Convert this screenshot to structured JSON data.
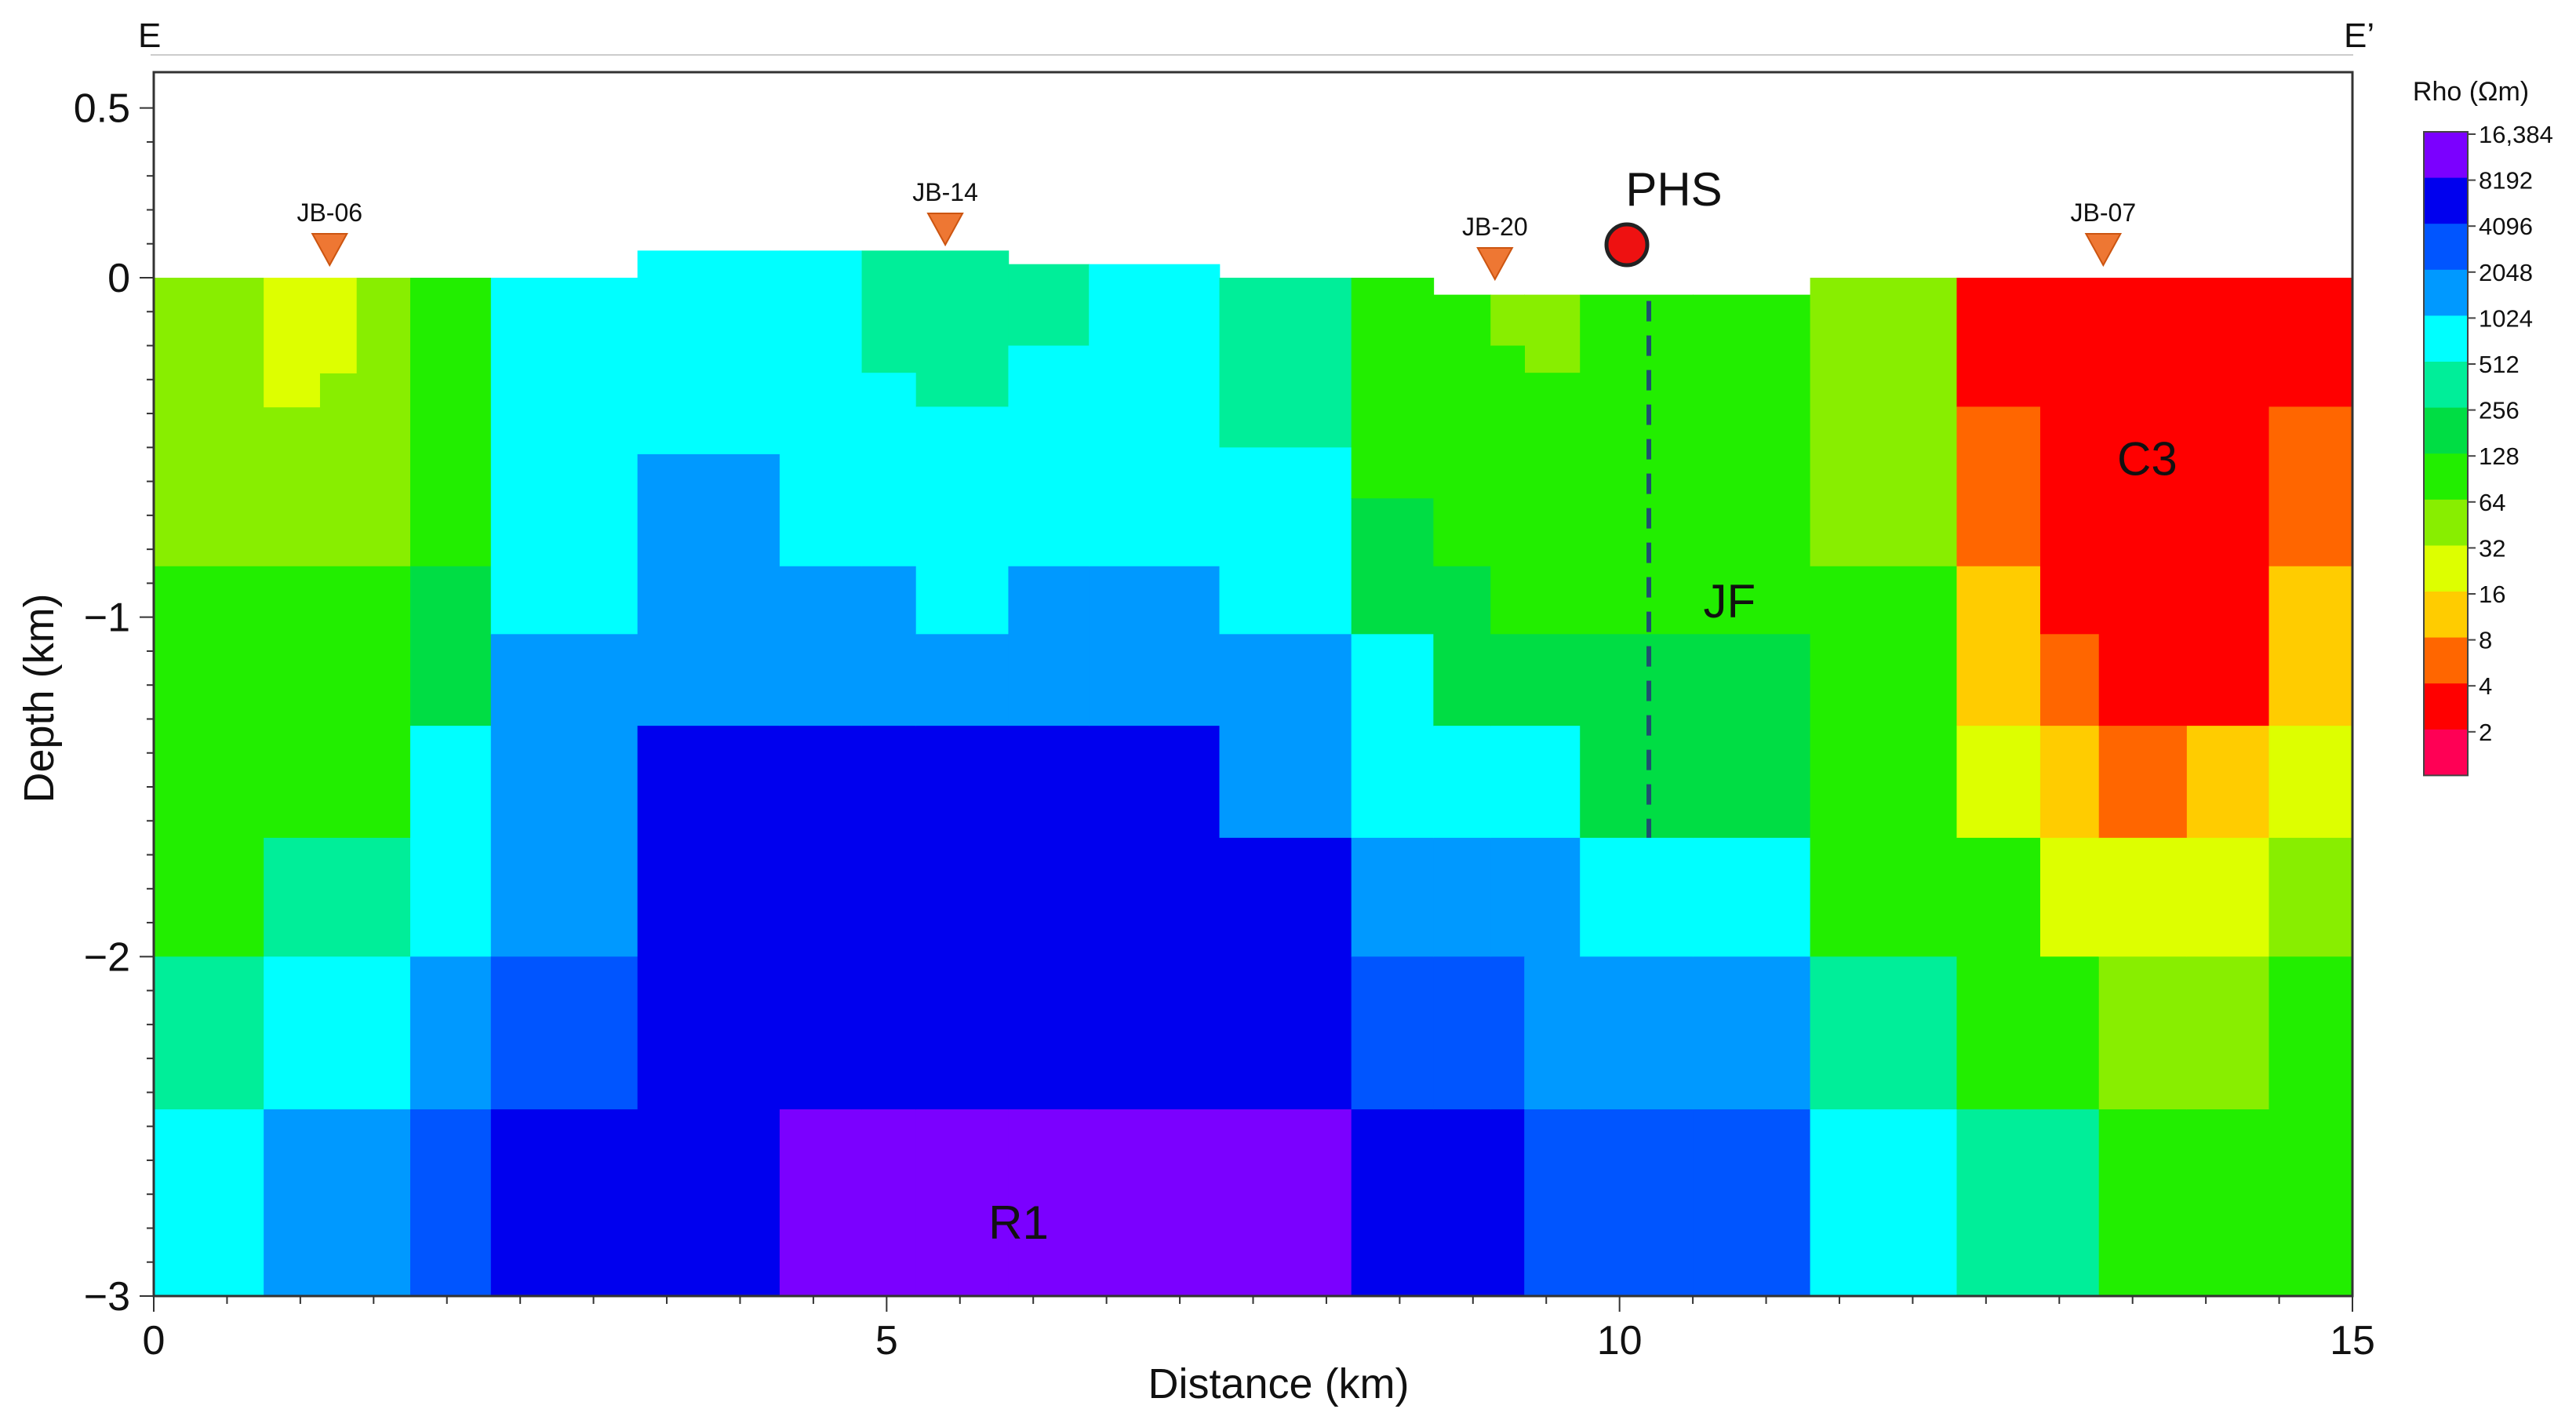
{
  "chart_data": {
    "type": "heatmap",
    "profile": {
      "start_label": "E",
      "end_label": "E’"
    },
    "xlabel": "Distance (km)",
    "ylabel": "Depth (km)",
    "xlim": [
      0,
      15
    ],
    "ylim": [
      -3,
      0.6
    ],
    "xticks": [
      0,
      5,
      10,
      15
    ],
    "xtick_labels": [
      "0",
      "5",
      "10",
      "15"
    ],
    "yticks": [
      0.5,
      0,
      -1,
      -2,
      -3
    ],
    "ytick_labels": [
      "0.5",
      "0",
      "−1",
      "−2",
      "−3"
    ],
    "colorbar": {
      "title": "Rho (Ωm)",
      "levels": [
        {
          "label": "16,384",
          "value": 16384,
          "color": "#7b00ff"
        },
        {
          "label": "8192",
          "value": 8192,
          "color": "#0000ee"
        },
        {
          "label": "4096",
          "value": 4096,
          "color": "#0055ff"
        },
        {
          "label": "2048",
          "value": 2048,
          "color": "#0099ff"
        },
        {
          "label": "1024",
          "value": 1024,
          "color": "#00ffff"
        },
        {
          "label": "512",
          "value": 512,
          "color": "#00ee99"
        },
        {
          "label": "256",
          "value": 256,
          "color": "#00dd44"
        },
        {
          "label": "128",
          "value": 128,
          "color": "#22ee00"
        },
        {
          "label": "64",
          "value": 64,
          "color": "#88ee00"
        },
        {
          "label": "32",
          "value": 32,
          "color": "#ddff00"
        },
        {
          "label": "16",
          "value": 16,
          "color": "#ffcc00"
        },
        {
          "label": "8",
          "value": 8,
          "color": "#ff6600"
        },
        {
          "label": "4",
          "value": 4,
          "color": "#ff0000"
        },
        {
          "label": "2",
          "value": 2,
          "color": "#ff0055"
        }
      ]
    },
    "cells": [
      {
        "x0": 0,
        "x1": 0.75,
        "y0": 0,
        "y1": -0.85,
        "rho": 64
      },
      {
        "x0": 0,
        "x1": 0.75,
        "y0": -0.85,
        "y1": -2.0,
        "rho": 128
      },
      {
        "x0": 0,
        "x1": 0.75,
        "y0": -2.0,
        "y1": -2.45,
        "rho": 512
      },
      {
        "x0": 0,
        "x1": 0.75,
        "y0": -2.45,
        "y1": -3.0,
        "rho": 1024
      },
      {
        "x0": 0.75,
        "x1": 1.75,
        "y0": 0,
        "y1": -0.85,
        "rho": 64
      },
      {
        "x0": 0.75,
        "x1": 1.13,
        "y0": 0,
        "y1": -0.38,
        "rho": 32
      },
      {
        "x0": 1.13,
        "x1": 1.38,
        "y0": 0,
        "y1": -0.28,
        "rho": 32
      },
      {
        "x0": 0.75,
        "x1": 1.75,
        "y0": -0.85,
        "y1": -1.65,
        "rho": 128
      },
      {
        "x0": 0.75,
        "x1": 1.75,
        "y0": -1.65,
        "y1": -2.0,
        "rho": 512
      },
      {
        "x0": 0.75,
        "x1": 1.75,
        "y0": -2.0,
        "y1": -2.45,
        "rho": 1024
      },
      {
        "x0": 0.75,
        "x1": 1.75,
        "y0": -2.45,
        "y1": -3.0,
        "rho": 2048
      },
      {
        "x0": 1.75,
        "x1": 2.3,
        "y0": 0,
        "y1": -0.85,
        "rho": 128
      },
      {
        "x0": 1.75,
        "x1": 2.3,
        "y0": -0.85,
        "y1": -1.32,
        "rho": 256
      },
      {
        "x0": 1.75,
        "x1": 2.3,
        "y0": -1.32,
        "y1": -2.0,
        "rho": 1024
      },
      {
        "x0": 1.75,
        "x1": 2.3,
        "y0": -2.0,
        "y1": -2.45,
        "rho": 2048
      },
      {
        "x0": 1.75,
        "x1": 2.3,
        "y0": -2.45,
        "y1": -3.0,
        "rho": 4096
      },
      {
        "x0": 2.3,
        "x1": 3.3,
        "y0": 0,
        "y1": -1.05,
        "rho": 1024
      },
      {
        "x0": 2.3,
        "x1": 3.3,
        "y0": -1.05,
        "y1": -2.0,
        "rho": 2048
      },
      {
        "x0": 2.3,
        "x1": 3.3,
        "y0": -2.0,
        "y1": -2.45,
        "rho": 4096
      },
      {
        "x0": 2.3,
        "x1": 3.3,
        "y0": -2.45,
        "y1": -3.0,
        "rho": 8192
      },
      {
        "x0": 3.3,
        "x1": 4.27,
        "y0": 0.08,
        "y1": -0.52,
        "rho": 1024
      },
      {
        "x0": 3.3,
        "x1": 4.27,
        "y0": -0.52,
        "y1": -1.32,
        "rho": 2048
      },
      {
        "x0": 3.3,
        "x1": 4.27,
        "y0": -1.32,
        "y1": -2.45,
        "rho": 8192
      },
      {
        "x0": 3.3,
        "x1": 4.27,
        "y0": -2.45,
        "y1": -3.0,
        "rho": 8192
      },
      {
        "x0": 4.27,
        "x1": 4.83,
        "y0": 0.08,
        "y1": -0.85,
        "rho": 1024
      },
      {
        "x0": 4.27,
        "x1": 4.83,
        "y0": -0.85,
        "y1": -1.32,
        "rho": 2048
      },
      {
        "x0": 4.27,
        "x1": 4.83,
        "y0": -1.32,
        "y1": -2.45,
        "rho": 8192
      },
      {
        "x0": 4.27,
        "x1": 4.83,
        "y0": -2.45,
        "y1": -3.0,
        "rho": 16384
      },
      {
        "x0": 4.83,
        "x1": 5.2,
        "y0": 0.08,
        "y1": -0.28,
        "rho": 512
      },
      {
        "x0": 4.83,
        "x1": 5.2,
        "y0": -0.28,
        "y1": -0.85,
        "rho": 1024
      },
      {
        "x0": 4.83,
        "x1": 5.2,
        "y0": -0.85,
        "y1": -1.32,
        "rho": 2048
      },
      {
        "x0": 4.83,
        "x1": 5.2,
        "y0": -1.32,
        "y1": -2.45,
        "rho": 8192
      },
      {
        "x0": 4.83,
        "x1": 5.2,
        "y0": -2.45,
        "y1": -3.0,
        "rho": 16384
      },
      {
        "x0": 5.2,
        "x1": 5.83,
        "y0": 0.08,
        "y1": -0.38,
        "rho": 512
      },
      {
        "x0": 5.2,
        "x1": 5.83,
        "y0": -0.38,
        "y1": -1.05,
        "rho": 1024
      },
      {
        "x0": 5.2,
        "x1": 5.83,
        "y0": -1.05,
        "y1": -1.32,
        "rho": 2048
      },
      {
        "x0": 5.2,
        "x1": 5.83,
        "y0": -1.32,
        "y1": -2.45,
        "rho": 8192
      },
      {
        "x0": 5.2,
        "x1": 5.83,
        "y0": -2.45,
        "y1": -3.0,
        "rho": 16384
      },
      {
        "x0": 5.83,
        "x1": 6.38,
        "y0": 0.04,
        "y1": -0.2,
        "rho": 512
      },
      {
        "x0": 5.83,
        "x1": 6.38,
        "y0": -0.2,
        "y1": -0.85,
        "rho": 1024
      },
      {
        "x0": 5.83,
        "x1": 6.38,
        "y0": -0.85,
        "y1": -1.32,
        "rho": 2048
      },
      {
        "x0": 5.83,
        "x1": 6.38,
        "y0": -1.32,
        "y1": -2.45,
        "rho": 8192
      },
      {
        "x0": 5.83,
        "x1": 6.38,
        "y0": -2.45,
        "y1": -3.0,
        "rho": 16384
      },
      {
        "x0": 6.38,
        "x1": 7.27,
        "y0": 0.04,
        "y1": -0.85,
        "rho": 1024
      },
      {
        "x0": 6.38,
        "x1": 7.27,
        "y0": -0.85,
        "y1": -1.32,
        "rho": 2048
      },
      {
        "x0": 6.38,
        "x1": 7.27,
        "y0": -1.32,
        "y1": -2.45,
        "rho": 8192
      },
      {
        "x0": 6.38,
        "x1": 7.27,
        "y0": -2.45,
        "y1": -3.0,
        "rho": 16384
      },
      {
        "x0": 7.27,
        "x1": 8.17,
        "y0": 0,
        "y1": -0.5,
        "rho": 512
      },
      {
        "x0": 7.27,
        "x1": 8.17,
        "y0": -0.5,
        "y1": -1.05,
        "rho": 1024
      },
      {
        "x0": 7.27,
        "x1": 8.17,
        "y0": -1.05,
        "y1": -1.65,
        "rho": 2048
      },
      {
        "x0": 7.27,
        "x1": 8.17,
        "y0": -1.65,
        "y1": -2.45,
        "rho": 8192
      },
      {
        "x0": 7.27,
        "x1": 8.17,
        "y0": -2.45,
        "y1": -3.0,
        "rho": 16384
      },
      {
        "x0": 8.17,
        "x1": 8.73,
        "y0": 0,
        "y1": -0.65,
        "rho": 128
      },
      {
        "x0": 8.17,
        "x1": 8.73,
        "y0": -0.65,
        "y1": -1.05,
        "rho": 256
      },
      {
        "x0": 8.17,
        "x1": 8.73,
        "y0": -1.05,
        "y1": -1.65,
        "rho": 1024
      },
      {
        "x0": 8.17,
        "x1": 8.73,
        "y0": -1.65,
        "y1": -2.0,
        "rho": 2048
      },
      {
        "x0": 8.17,
        "x1": 8.73,
        "y0": -2.0,
        "y1": -2.45,
        "rho": 4096
      },
      {
        "x0": 8.17,
        "x1": 8.73,
        "y0": -2.45,
        "y1": -3.0,
        "rho": 8192
      },
      {
        "x0": 8.73,
        "x1": 9.12,
        "y0": -0.05,
        "y1": -0.65,
        "rho": 128
      },
      {
        "x0": 8.73,
        "x1": 9.12,
        "y0": -0.65,
        "y1": -0.85,
        "rho": 128
      },
      {
        "x0": 8.73,
        "x1": 9.12,
        "y0": -0.85,
        "y1": -1.32,
        "rho": 256
      },
      {
        "x0": 8.73,
        "x1": 9.12,
        "y0": -1.32,
        "y1": -1.65,
        "rho": 1024
      },
      {
        "x0": 8.73,
        "x1": 9.12,
        "y0": -1.65,
        "y1": -2.0,
        "rho": 2048
      },
      {
        "x0": 8.73,
        "x1": 9.12,
        "y0": -2.0,
        "y1": -2.45,
        "rho": 4096
      },
      {
        "x0": 8.73,
        "x1": 9.12,
        "y0": -2.45,
        "y1": -3.0,
        "rho": 8192
      },
      {
        "x0": 9.12,
        "x1": 9.35,
        "y0": -0.05,
        "y1": -0.2,
        "rho": 64
      },
      {
        "x0": 9.35,
        "x1": 9.73,
        "y0": -0.05,
        "y1": -0.28,
        "rho": 64
      },
      {
        "x0": 9.12,
        "x1": 9.35,
        "y0": -0.2,
        "y1": -0.65,
        "rho": 128
      },
      {
        "x0": 9.35,
        "x1": 9.73,
        "y0": -0.28,
        "y1": -0.65,
        "rho": 128
      },
      {
        "x0": 9.12,
        "x1": 9.73,
        "y0": -0.65,
        "y1": -1.05,
        "rho": 128
      },
      {
        "x0": 9.12,
        "x1": 9.73,
        "y0": -1.05,
        "y1": -1.32,
        "rho": 256
      },
      {
        "x0": 9.12,
        "x1": 9.73,
        "y0": -1.32,
        "y1": -1.65,
        "rho": 1024
      },
      {
        "x0": 9.12,
        "x1": 9.73,
        "y0": -1.65,
        "y1": -2.0,
        "rho": 2048
      },
      {
        "x0": 9.12,
        "x1": 9.35,
        "y0": -2.0,
        "y1": -2.45,
        "rho": 4096
      },
      {
        "x0": 9.35,
        "x1": 9.73,
        "y0": -2.0,
        "y1": -2.45,
        "rho": 2048
      },
      {
        "x0": 9.12,
        "x1": 9.35,
        "y0": -2.45,
        "y1": -3.0,
        "rho": 8192
      },
      {
        "x0": 9.35,
        "x1": 9.73,
        "y0": -2.45,
        "y1": -3.0,
        "rho": 4096
      },
      {
        "x0": 9.73,
        "x1": 10.5,
        "y0": -0.05,
        "y1": -1.05,
        "rho": 128
      },
      {
        "x0": 9.73,
        "x1": 10.5,
        "y0": -1.05,
        "y1": -1.65,
        "rho": 256
      },
      {
        "x0": 9.73,
        "x1": 10.5,
        "y0": -1.65,
        "y1": -2.0,
        "rho": 1024
      },
      {
        "x0": 9.73,
        "x1": 10.5,
        "y0": -2.0,
        "y1": -2.45,
        "rho": 2048
      },
      {
        "x0": 9.73,
        "x1": 10.5,
        "y0": -2.45,
        "y1": -3.0,
        "rho": 4096
      },
      {
        "x0": 10.5,
        "x1": 11.3,
        "y0": -0.05,
        "y1": -0.38,
        "rho": 128
      },
      {
        "x0": 10.5,
        "x1": 11.3,
        "y0": -0.38,
        "y1": -1.05,
        "rho": 128
      },
      {
        "x0": 10.5,
        "x1": 11.3,
        "y0": -1.05,
        "y1": -1.65,
        "rho": 256
      },
      {
        "x0": 10.5,
        "x1": 11.3,
        "y0": -1.65,
        "y1": -2.0,
        "rho": 1024
      },
      {
        "x0": 10.5,
        "x1": 11.3,
        "y0": -2.0,
        "y1": -2.45,
        "rho": 2048
      },
      {
        "x0": 10.5,
        "x1": 11.3,
        "y0": -2.45,
        "y1": -3.0,
        "rho": 4096
      },
      {
        "x0": 11.3,
        "x1": 12.3,
        "y0": 0,
        "y1": -0.85,
        "rho": 64
      },
      {
        "x0": 11.3,
        "x1": 12.3,
        "y0": -0.85,
        "y1": -2.0,
        "rho": 128
      },
      {
        "x0": 11.3,
        "x1": 12.3,
        "y0": -2.0,
        "y1": -2.45,
        "rho": 512
      },
      {
        "x0": 11.3,
        "x1": 12.3,
        "y0": -2.45,
        "y1": -3.0,
        "rho": 1024
      },
      {
        "x0": 12.3,
        "x1": 12.87,
        "y0": 0,
        "y1": -0.38,
        "rho": 4
      },
      {
        "x0": 12.3,
        "x1": 12.87,
        "y0": -0.38,
        "y1": -0.85,
        "rho": 8
      },
      {
        "x0": 12.3,
        "x1": 12.87,
        "y0": -0.85,
        "y1": -1.32,
        "rho": 16
      },
      {
        "x0": 12.3,
        "x1": 12.87,
        "y0": -1.32,
        "y1": -1.65,
        "rho": 32
      },
      {
        "x0": 12.3,
        "x1": 12.87,
        "y0": -1.65,
        "y1": -2.0,
        "rho": 128
      },
      {
        "x0": 12.3,
        "x1": 12.87,
        "y0": -2.0,
        "y1": -2.45,
        "rho": 128
      },
      {
        "x0": 12.3,
        "x1": 12.87,
        "y0": -2.45,
        "y1": -3.0,
        "rho": 512
      },
      {
        "x0": 12.87,
        "x1": 13.27,
        "y0": 0,
        "y1": -1.05,
        "rho": 4
      },
      {
        "x0": 12.87,
        "x1": 13.27,
        "y0": -1.05,
        "y1": -1.32,
        "rho": 8
      },
      {
        "x0": 12.87,
        "x1": 13.27,
        "y0": -1.32,
        "y1": -1.65,
        "rho": 16
      },
      {
        "x0": 12.87,
        "x1": 13.27,
        "y0": -1.65,
        "y1": -2.0,
        "rho": 32
      },
      {
        "x0": 12.87,
        "x1": 13.27,
        "y0": -2.0,
        "y1": -2.45,
        "rho": 128
      },
      {
        "x0": 12.87,
        "x1": 13.27,
        "y0": -2.45,
        "y1": -3.0,
        "rho": 512
      },
      {
        "x0": 13.27,
        "x1": 13.87,
        "y0": 0,
        "y1": -1.32,
        "rho": 4
      },
      {
        "x0": 13.27,
        "x1": 13.87,
        "y0": -1.32,
        "y1": -1.65,
        "rho": 8
      },
      {
        "x0": 13.27,
        "x1": 13.87,
        "y0": -1.65,
        "y1": -2.0,
        "rho": 32
      },
      {
        "x0": 13.27,
        "x1": 13.87,
        "y0": -2.0,
        "y1": -2.45,
        "rho": 64
      },
      {
        "x0": 13.27,
        "x1": 13.87,
        "y0": -2.45,
        "y1": -3.0,
        "rho": 128
      },
      {
        "x0": 13.87,
        "x1": 14.43,
        "y0": 0,
        "y1": -1.32,
        "rho": 4
      },
      {
        "x0": 13.87,
        "x1": 14.43,
        "y0": -1.32,
        "y1": -1.65,
        "rho": 16
      },
      {
        "x0": 13.87,
        "x1": 14.43,
        "y0": -1.65,
        "y1": -2.0,
        "rho": 32
      },
      {
        "x0": 13.87,
        "x1": 14.43,
        "y0": -2.0,
        "y1": -2.45,
        "rho": 64
      },
      {
        "x0": 13.87,
        "x1": 14.43,
        "y0": -2.45,
        "y1": -3.0,
        "rho": 128
      },
      {
        "x0": 14.43,
        "x1": 15,
        "y0": 0,
        "y1": -0.38,
        "rho": 4
      },
      {
        "x0": 14.43,
        "x1": 15,
        "y0": -0.38,
        "y1": -0.85,
        "rho": 8
      },
      {
        "x0": 14.43,
        "x1": 15,
        "y0": -0.85,
        "y1": -1.32,
        "rho": 16
      },
      {
        "x0": 14.43,
        "x1": 15,
        "y0": -1.32,
        "y1": -1.65,
        "rho": 32
      },
      {
        "x0": 14.43,
        "x1": 15,
        "y0": -1.65,
        "y1": -2.0,
        "rho": 64
      },
      {
        "x0": 14.43,
        "x1": 15,
        "y0": -2.0,
        "y1": -2.45,
        "rho": 128
      },
      {
        "x0": 14.43,
        "x1": 15,
        "y0": -2.45,
        "y1": -3.0,
        "rho": 128
      }
    ],
    "stations": [
      {
        "label": "JB-06",
        "x": 1.2
      },
      {
        "label": "JB-14",
        "x": 5.4
      },
      {
        "label": "JB-20",
        "x": 9.15
      },
      {
        "label": "JB-07",
        "x": 13.3
      }
    ],
    "marker": {
      "label": "PHS",
      "x": 10.05,
      "y": 0.1,
      "color": "#ee1111"
    },
    "fault": {
      "label": "JF",
      "x": 10.2,
      "y_top": -0.05,
      "y_bottom": -1.65
    },
    "annotations": [
      {
        "text": "JF",
        "x": 10.75,
        "y": -0.95
      },
      {
        "text": "C3",
        "x": 13.6,
        "y": -0.53
      },
      {
        "text": "R1",
        "x": 5.9,
        "y": -2.78
      }
    ]
  }
}
